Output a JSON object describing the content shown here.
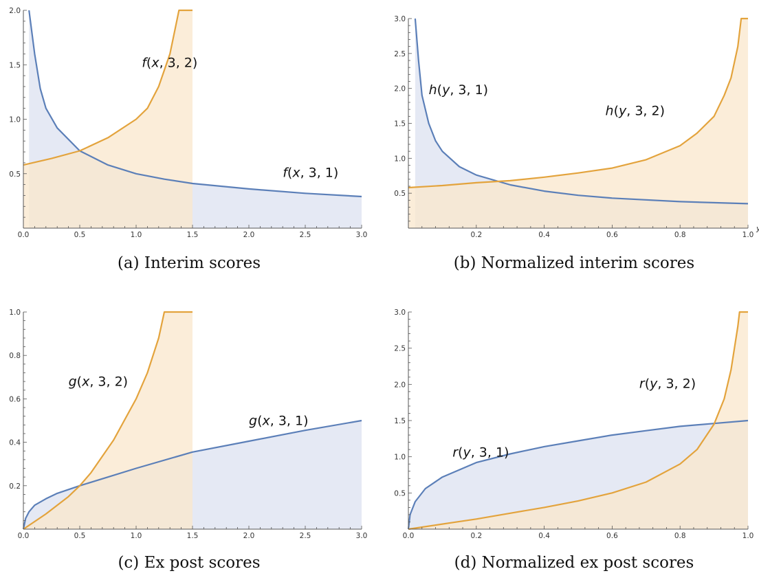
{
  "figure": {
    "colors": {
      "blue_line": "#5b7fb8",
      "blue_fill": "#dce2f0",
      "orange_line": "#e3a33c",
      "orange_fill": "#f9e7cc",
      "axis": "#555555"
    }
  },
  "chart_data": [
    {
      "panel": "a",
      "type": "area",
      "caption": "(a) Interim scores",
      "xlabel": "",
      "ylabel": "",
      "xlim": [
        0,
        3
      ],
      "ylim": [
        0,
        2
      ],
      "xticks": [
        "0.0",
        "0.5",
        "1.0",
        "1.5",
        "2.0",
        "2.5",
        "3.0"
      ],
      "yticks": [
        "0.5",
        "1.0",
        "1.5",
        "2.0"
      ],
      "annotations": [
        {
          "fn": "f",
          "var": "x",
          "args": "3, 2",
          "at": [
            1.05,
            1.48
          ]
        },
        {
          "fn": "f",
          "var": "x",
          "args": "3, 1",
          "at": [
            2.3,
            0.47
          ]
        }
      ],
      "series": [
        {
          "name": "f(x, 3, 1)",
          "color": "blue",
          "x": [
            0.05,
            0.1,
            0.15,
            0.2,
            0.3,
            0.5,
            0.75,
            1.0,
            1.25,
            1.5,
            2.0,
            2.5,
            3.0
          ],
          "y": [
            2.0,
            1.6,
            1.28,
            1.1,
            0.92,
            0.71,
            0.58,
            0.5,
            0.45,
            0.41,
            0.36,
            0.32,
            0.29
          ]
        },
        {
          "name": "f(x, 3, 2)",
          "color": "orange",
          "x": [
            0.0,
            0.25,
            0.5,
            0.75,
            1.0,
            1.1,
            1.2,
            1.3,
            1.35,
            1.38,
            1.5
          ],
          "y": [
            0.58,
            0.64,
            0.71,
            0.83,
            1.0,
            1.1,
            1.3,
            1.6,
            1.85,
            2.0,
            2.0
          ]
        }
      ]
    },
    {
      "panel": "b",
      "type": "area",
      "caption": "(b) Normalized interim scores",
      "xlabel": "y",
      "ylabel": "",
      "xlim": [
        0,
        1
      ],
      "ylim": [
        0,
        3
      ],
      "xticks": [
        "0.2",
        "0.4",
        "0.6",
        "0.8",
        "1.0"
      ],
      "yticks": [
        "0.5",
        "1.0",
        "1.5",
        "2.0",
        "2.5",
        "3.0"
      ],
      "annotations": [
        {
          "fn": "h",
          "var": "y",
          "args": "3, 1",
          "at": [
            0.06,
            1.92
          ]
        },
        {
          "fn": "h",
          "var": "y",
          "args": "3, 2",
          "at": [
            0.58,
            1.62
          ]
        }
      ],
      "series": [
        {
          "name": "h(y, 3, 1)",
          "color": "blue",
          "x": [
            0.02,
            0.03,
            0.04,
            0.06,
            0.08,
            0.1,
            0.15,
            0.2,
            0.3,
            0.4,
            0.5,
            0.6,
            0.8,
            1.0
          ],
          "y": [
            3.0,
            2.4,
            1.9,
            1.5,
            1.25,
            1.1,
            0.88,
            0.76,
            0.62,
            0.53,
            0.47,
            0.43,
            0.38,
            0.35
          ]
        },
        {
          "name": "h(y, 3, 2)",
          "color": "orange",
          "x": [
            0.0,
            0.1,
            0.2,
            0.3,
            0.4,
            0.5,
            0.6,
            0.7,
            0.8,
            0.85,
            0.9,
            0.93,
            0.95,
            0.97,
            0.98,
            1.0
          ],
          "y": [
            0.58,
            0.61,
            0.65,
            0.68,
            0.73,
            0.79,
            0.86,
            0.98,
            1.18,
            1.36,
            1.6,
            1.9,
            2.15,
            2.6,
            3.0,
            3.0
          ]
        }
      ]
    },
    {
      "panel": "c",
      "type": "area",
      "caption": "(c) Ex post scores",
      "xlabel": "",
      "ylabel": "",
      "xlim": [
        0,
        3
      ],
      "ylim": [
        0,
        1
      ],
      "xticks": [
        "0.0",
        "0.5",
        "1.0",
        "1.5",
        "2.0",
        "2.5",
        "3.0"
      ],
      "yticks": [
        "0.2",
        "0.4",
        "0.6",
        "0.8",
        "1.0"
      ],
      "annotations": [
        {
          "fn": "g",
          "var": "x",
          "args": "3, 2",
          "at": [
            0.4,
            0.66
          ]
        },
        {
          "fn": "g",
          "var": "x",
          "args": "3, 1",
          "at": [
            2.0,
            0.48
          ]
        }
      ],
      "series": [
        {
          "name": "g(x, 3, 1)",
          "color": "blue",
          "x": [
            0.0,
            0.02,
            0.05,
            0.1,
            0.2,
            0.3,
            0.5,
            0.75,
            1.0,
            1.5,
            2.0,
            2.5,
            3.0
          ],
          "y": [
            0.0,
            0.05,
            0.08,
            0.11,
            0.14,
            0.165,
            0.2,
            0.24,
            0.28,
            0.355,
            0.405,
            0.455,
            0.5
          ]
        },
        {
          "name": "g(x, 3, 2)",
          "color": "orange",
          "x": [
            0.0,
            0.2,
            0.4,
            0.5,
            0.6,
            0.8,
            1.0,
            1.1,
            1.2,
            1.25,
            1.5
          ],
          "y": [
            0.0,
            0.07,
            0.15,
            0.2,
            0.26,
            0.41,
            0.6,
            0.72,
            0.88,
            1.0,
            1.0
          ]
        }
      ]
    },
    {
      "panel": "d",
      "type": "area",
      "caption": "(d) Normalized ex post scores",
      "xlabel": "",
      "ylabel": "",
      "xlim": [
        0,
        1
      ],
      "ylim": [
        0,
        3
      ],
      "xticks": [
        "0.0",
        "0.2",
        "0.4",
        "0.6",
        "0.8",
        "1.0"
      ],
      "yticks": [
        "0.5",
        "1.0",
        "1.5",
        "2.0",
        "2.5",
        "3.0"
      ],
      "annotations": [
        {
          "fn": "r",
          "var": "y",
          "args": "3, 1",
          "at": [
            0.13,
            1.0
          ]
        },
        {
          "fn": "r",
          "var": "y",
          "args": "3, 2",
          "at": [
            0.68,
            1.95
          ]
        }
      ],
      "series": [
        {
          "name": "r(y, 3, 1)",
          "color": "blue",
          "x": [
            0.0,
            0.005,
            0.02,
            0.05,
            0.1,
            0.2,
            0.3,
            0.4,
            0.5,
            0.6,
            0.7,
            0.8,
            0.9,
            1.0
          ],
          "y": [
            0.0,
            0.2,
            0.38,
            0.56,
            0.72,
            0.92,
            1.04,
            1.14,
            1.22,
            1.3,
            1.36,
            1.42,
            1.46,
            1.5
          ]
        },
        {
          "name": "r(y, 3, 2)",
          "color": "orange",
          "x": [
            0.0,
            0.1,
            0.2,
            0.3,
            0.4,
            0.5,
            0.6,
            0.7,
            0.8,
            0.85,
            0.9,
            0.93,
            0.95,
            0.97,
            0.975,
            1.0
          ],
          "y": [
            0.0,
            0.07,
            0.14,
            0.22,
            0.3,
            0.39,
            0.5,
            0.65,
            0.9,
            1.1,
            1.45,
            1.8,
            2.2,
            2.8,
            3.0,
            3.0
          ]
        }
      ]
    }
  ]
}
